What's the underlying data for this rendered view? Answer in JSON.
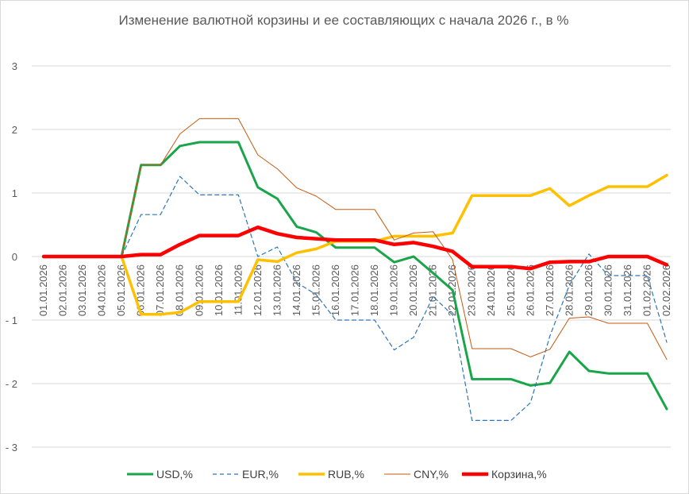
{
  "chart_data": {
    "type": "line",
    "title": "Изменение валютной корзины и ее составляющих с начала 2026 г., в %",
    "xlabel": "",
    "ylabel": "",
    "ylim": [
      -3,
      3
    ],
    "yticks": [
      3,
      2,
      1,
      0,
      -1,
      -2,
      -3
    ],
    "ytick_labels": [
      "3",
      "2",
      "1",
      "0",
      "- 1",
      "- 2",
      "- 3"
    ],
    "grid": "horizontal",
    "legend_position": "bottom",
    "categories": [
      "01.01.2026",
      "02.01.2026",
      "03.01.2026",
      "04.01.2026",
      "05.01.2026",
      "06.01.2026",
      "07.01.2026",
      "08.01.2026",
      "09.01.2026",
      "10.01.2026",
      "11.01.2026",
      "12.01.2026",
      "13.01.2026",
      "14.01.2026",
      "15.01.2026",
      "16.01.2026",
      "17.01.2026",
      "18.01.2026",
      "19.01.2026",
      "20.01.2026",
      "21.01.2026",
      "22.01.2026",
      "23.01.2026",
      "24.01.2026",
      "25.01.2026",
      "26.01.2026",
      "27.01.2026",
      "28.01.2026",
      "29.01.2026",
      "30.01.2026",
      "31.01.2026",
      "01.02.2026",
      "02.02.2026"
    ],
    "series": [
      {
        "name": "USD,%",
        "color": "#1aa54a",
        "width": 3,
        "dash": "",
        "values": [
          0,
          0,
          0,
          0,
          0,
          1.44,
          1.44,
          1.74,
          1.8,
          1.8,
          1.8,
          1.09,
          0.91,
          0.47,
          0.38,
          0.14,
          0.14,
          0.14,
          -0.09,
          0,
          -0.26,
          -0.53,
          -1.93,
          -1.93,
          -1.93,
          -2.03,
          -1.99,
          -1.5,
          -1.8,
          -1.84,
          -1.84,
          -1.84,
          -2.4
        ]
      },
      {
        "name": "EUR,%",
        "color": "#2e75b6",
        "width": 1.2,
        "dash": "5,4",
        "values": [
          0,
          0,
          0,
          0,
          0,
          0.66,
          0.66,
          1.26,
          0.97,
          0.97,
          0.97,
          0,
          0.15,
          -0.41,
          -0.6,
          -1.0,
          -1.0,
          -1.0,
          -1.47,
          -1.27,
          -0.63,
          -0.92,
          -2.58,
          -2.58,
          -2.58,
          -2.3,
          -1.25,
          -0.45,
          0.04,
          -0.3,
          -0.3,
          -0.3,
          -1.35
        ]
      },
      {
        "name": "RUB,%",
        "color": "#ffc000",
        "width": 3.5,
        "dash": "",
        "values": [
          0,
          0,
          0,
          0,
          0,
          -0.91,
          -0.91,
          -0.88,
          -0.71,
          -0.71,
          -0.71,
          -0.05,
          -0.08,
          0.06,
          0.12,
          0.24,
          0.24,
          0.24,
          0.32,
          0.32,
          0.32,
          0.37,
          0.96,
          0.96,
          0.96,
          0.96,
          1.07,
          0.8,
          0.96,
          1.1,
          1.1,
          1.1,
          1.28
        ]
      },
      {
        "name": "CNY,%",
        "color": "#c55a11",
        "width": 1,
        "dash": "",
        "values": [
          0,
          0,
          0,
          0,
          0,
          1.44,
          1.44,
          1.93,
          2.17,
          2.17,
          2.17,
          1.6,
          1.38,
          1.08,
          0.95,
          0.74,
          0.74,
          0.74,
          0.26,
          0.37,
          0.39,
          -0.05,
          -1.45,
          -1.45,
          -1.45,
          -1.58,
          -1.46,
          -0.97,
          -0.95,
          -1.05,
          -1.05,
          -1.05,
          -1.62
        ]
      },
      {
        "name": "Корзина,%",
        "color": "#ff0000",
        "width": 4.5,
        "dash": "",
        "values": [
          0,
          0,
          0,
          0,
          0,
          0.03,
          0.03,
          0.19,
          0.33,
          0.33,
          0.33,
          0.46,
          0.36,
          0.3,
          0.28,
          0.26,
          0.26,
          0.26,
          0.19,
          0.22,
          0.16,
          0.08,
          -0.16,
          -0.16,
          -0.16,
          -0.19,
          -0.09,
          -0.08,
          -0.08,
          0,
          0,
          0,
          -0.13
        ]
      }
    ]
  }
}
